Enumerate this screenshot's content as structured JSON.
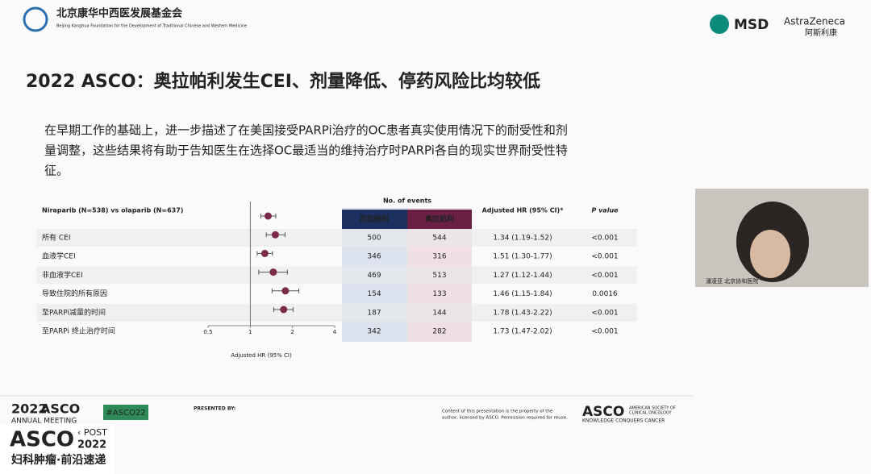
{
  "header": {
    "org_name": "北京康华中西医发展基金会",
    "org_name_en": "Beijing Kanghua Foundation for the Development of Traditional Chinese and Western Medicine",
    "sponsor1": "MSD",
    "sponsor2": "AstraZeneca",
    "sponsor2_cn": "阿斯利康"
  },
  "slide": {
    "title": "2022 ASCO：奥拉帕利发生CEI、剂量降低、停药风险比均较低",
    "paragraph": [
      "在早期工作的基础上，进一步描述了在美国接受PARPi治疗的OC患者真实使用情况下的耐受性和剂",
      "量调整，这些结果将有助于告知医生在选择OC最适当的维持治疗时PARPi各自的现实世界耐受性特",
      "征。"
    ],
    "forest": {
      "comparison": "Niraparib (N=538) vs olaparib (N=637)",
      "events_header": "No. of events",
      "col_a": "尼拉帕利",
      "col_b": "奥拉帕利",
      "hr_header": "Adjusted HR (95% CI)*",
      "p_header": "P value",
      "x_label": "Adjusted HR (95% CI)",
      "log_scale": true,
      "xlim": [
        0.5,
        4
      ],
      "xticks": [
        0.5,
        1,
        2,
        4
      ],
      "reference": 1,
      "point_color": "#7b2a4a",
      "rows": [
        {
          "label": "所有 CEI",
          "events_a": "500",
          "events_b": "544",
          "hr": 1.34,
          "lo": 1.19,
          "hi": 1.52,
          "hr_label": "1.34 (1.19-1.52)",
          "p": "<0.001"
        },
        {
          "label": "血液学CEI",
          "events_a": "346",
          "events_b": "316",
          "hr": 1.51,
          "lo": 1.3,
          "hi": 1.77,
          "hr_label": "1.51 (1.30-1.77)",
          "p": "<0.001"
        },
        {
          "label": "非血液学CEI",
          "events_a": "469",
          "events_b": "513",
          "hr": 1.27,
          "lo": 1.12,
          "hi": 1.44,
          "hr_label": "1.27 (1.12-1.44)",
          "p": "<0.001"
        },
        {
          "label": "导致住院的所有原因",
          "events_a": "154",
          "events_b": "133",
          "hr": 1.46,
          "lo": 1.15,
          "hi": 1.84,
          "hr_label": "1.46 (1.15-1.84)",
          "p": "0.0016"
        },
        {
          "label": "至PARPi减量的时间",
          "events_a": "187",
          "events_b": "144",
          "hr": 1.78,
          "lo": 1.43,
          "hi": 2.22,
          "hr_label": "1.78 (1.43-2.22)",
          "p": "<0.001"
        },
        {
          "label": "至PARPi 终止治疗时间",
          "events_a": "342",
          "events_b": "282",
          "hr": 1.73,
          "lo": 1.47,
          "hi": 2.02,
          "hr_label": "1.73 (1.47-2.02)",
          "p": "<0.001"
        }
      ]
    }
  },
  "footer": {
    "meeting_year": "2022",
    "meeting_name": "ASCO",
    "meeting_sub": "ANNUAL MEETING",
    "hashtag": "#ASCO22",
    "presented_by": "PRESENTED BY:",
    "copyright": [
      "Content of this presentation is the property of the",
      "author, licensed by ASCO. Permission required for reuse."
    ],
    "asco": "ASCO",
    "asco_full": [
      "AMERICAN SOCIETY OF",
      "CLINICAL ONCOLOGY"
    ],
    "asco_tagline": "KNOWLEDGE CONQUERS CANCER",
    "post_name": "ASCO",
    "post_label": "‹ POST",
    "post_year": "2022",
    "post_cn": "妇科肿瘤·前沿速递"
  },
  "video": {
    "caption": "潘凌亚 北京协和医院"
  }
}
